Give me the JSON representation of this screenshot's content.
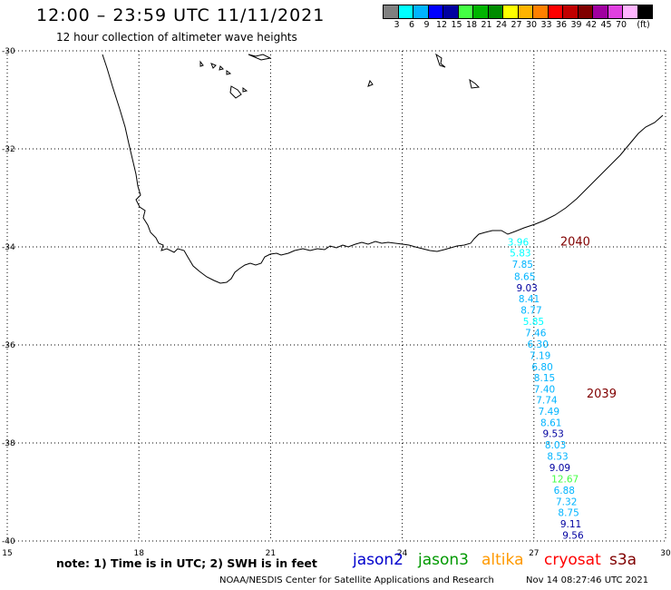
{
  "header": {
    "title": "12:00 – 23:59 UTC 11/11/2021",
    "subtitle": "12 hour collection of altimeter wave heights"
  },
  "scale": {
    "colors": [
      "#808080",
      "#00ffff",
      "#00b4ff",
      "#0000ff",
      "#0000a0",
      "#44ff44",
      "#00b400",
      "#008c00",
      "#ffff00",
      "#ffb400",
      "#ff8000",
      "#ff0000",
      "#c00000",
      "#800000",
      "#a000a0",
      "#e040e0",
      "#ffb4ff",
      "#000000"
    ],
    "labels": [
      "3",
      "6",
      "9",
      "12",
      "15",
      "18",
      "21",
      "24",
      "27",
      "30",
      "33",
      "36",
      "39",
      "42",
      "45",
      "70",
      "(ft)"
    ]
  },
  "axes": {
    "lat_labels": [
      "-30",
      "-32",
      "-34",
      "-36",
      "-38",
      "-40"
    ],
    "lon_labels": [
      "15",
      "18",
      "21",
      "24",
      "27",
      "30"
    ]
  },
  "chart_data": {
    "type": "scatter",
    "x_range": [
      15,
      30
    ],
    "y_range": [
      -40,
      -30
    ],
    "track_labels": [
      {
        "text": "2040",
        "lon": 27.6,
        "lat": -33.9
      },
      {
        "text": "2039",
        "lon": 28.2,
        "lat": -37.0
      }
    ],
    "points": [
      {
        "lon": 26.4,
        "lat": -33.9,
        "swh": "3.96"
      },
      {
        "lon": 26.45,
        "lat": -34.12,
        "swh": "5.83"
      },
      {
        "lon": 26.5,
        "lat": -34.35,
        "swh": "7.85"
      },
      {
        "lon": 26.55,
        "lat": -34.6,
        "swh": "8.65"
      },
      {
        "lon": 26.6,
        "lat": -34.83,
        "swh": "9.03"
      },
      {
        "lon": 26.65,
        "lat": -35.06,
        "swh": "8.41"
      },
      {
        "lon": 26.7,
        "lat": -35.29,
        "swh": "8.77"
      },
      {
        "lon": 26.75,
        "lat": -35.52,
        "swh": "5.85"
      },
      {
        "lon": 26.8,
        "lat": -35.75,
        "swh": "7.46"
      },
      {
        "lon": 26.85,
        "lat": -35.98,
        "swh": "6.30"
      },
      {
        "lon": 26.9,
        "lat": -36.21,
        "swh": "7.19"
      },
      {
        "lon": 26.95,
        "lat": -36.44,
        "swh": "6.80"
      },
      {
        "lon": 27.0,
        "lat": -36.67,
        "swh": "8.15"
      },
      {
        "lon": 27.0,
        "lat": -36.9,
        "swh": "7.40"
      },
      {
        "lon": 27.05,
        "lat": -37.12,
        "swh": "7.74"
      },
      {
        "lon": 27.1,
        "lat": -37.35,
        "swh": "7.49"
      },
      {
        "lon": 27.15,
        "lat": -37.58,
        "swh": "8.61"
      },
      {
        "lon": 27.2,
        "lat": -37.81,
        "swh": "9.53"
      },
      {
        "lon": 27.25,
        "lat": -38.04,
        "swh": "8.03"
      },
      {
        "lon": 27.3,
        "lat": -38.27,
        "swh": "8.53"
      },
      {
        "lon": 27.35,
        "lat": -38.5,
        "swh": "9.09"
      },
      {
        "lon": 27.4,
        "lat": -38.73,
        "swh": "12.67"
      },
      {
        "lon": 27.45,
        "lat": -38.96,
        "swh": "6.88"
      },
      {
        "lon": 27.5,
        "lat": -39.19,
        "swh": "7.32"
      },
      {
        "lon": 27.55,
        "lat": -39.42,
        "swh": "8.75"
      },
      {
        "lon": 27.6,
        "lat": -39.65,
        "swh": "9.11"
      },
      {
        "lon": 27.65,
        "lat": -39.88,
        "swh": "9.56"
      }
    ]
  },
  "footer": {
    "note": "note:  1) Time is in UTC;  2) SWH is in feet",
    "satellites": [
      {
        "name": "jason2",
        "color": "#0000cc"
      },
      {
        "name": "jason3",
        "color": "#009900"
      },
      {
        "name": "altika",
        "color": "#ff9900"
      },
      {
        "name": "cryosat",
        "color": "#ff0000"
      },
      {
        "name": "s3a",
        "color": "#800000"
      }
    ],
    "credit": "NOAA/NESDIS Center for Satellite Applications and Research",
    "timestamp": "Nov 14 08:27:46 UTC 2021"
  }
}
